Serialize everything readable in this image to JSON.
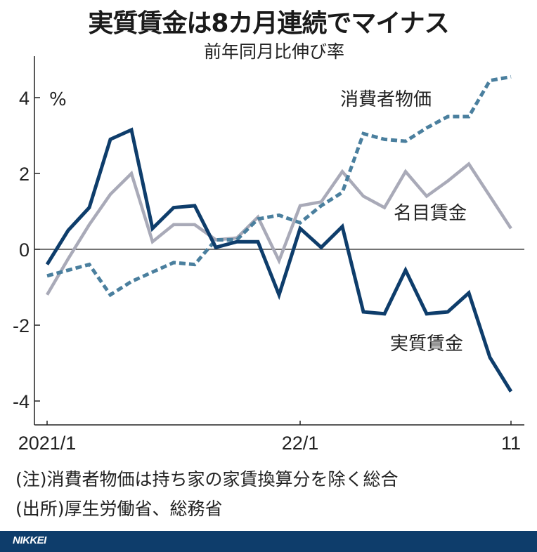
{
  "title": "実質賃金は8カ月連続でマイナス",
  "subtitle": "前年同月比伸び率",
  "unit": "%",
  "notes": [
    "(注)消費者物価は持ち家の家賃換算分を除く総合",
    "(出所)厚生労働省、総務省"
  ],
  "footer": {
    "brand": "NIKKEI"
  },
  "colors": {
    "real_wages": "#0e3d6b",
    "nominal_wages": "#a9aab8",
    "cpi": "#4a7f9e",
    "footer_bg": "#0e3d6b"
  },
  "chart_data": {
    "type": "line",
    "title": "実質賃金は8カ月連続でマイナス",
    "subtitle": "前年同月比伸び率",
    "xlabel": "",
    "ylabel": "%",
    "ylim": [
      -4.7,
      5.2
    ],
    "yticks": [
      4,
      2,
      0,
      -2,
      -4
    ],
    "xtick_labels": [
      {
        "index": 0,
        "label": "2021/1"
      },
      {
        "index": 12,
        "label": "22/1"
      },
      {
        "index": 22,
        "label": "11"
      }
    ],
    "x": [
      "2021/1",
      "2021/2",
      "2021/3",
      "2021/4",
      "2021/5",
      "2021/6",
      "2021/7",
      "2021/8",
      "2021/9",
      "2021/10",
      "2021/11",
      "2021/12",
      "2022/1",
      "2022/2",
      "2022/3",
      "2022/4",
      "2022/5",
      "2022/6",
      "2022/7",
      "2022/8",
      "2022/9",
      "2022/10",
      "2022/11"
    ],
    "grid": false,
    "legend": "inline labels",
    "series": [
      {
        "name": "実質賃金",
        "style": "solid",
        "color": "#0e3d6b",
        "values": [
          -0.4,
          0.5,
          1.1,
          2.9,
          3.15,
          0.55,
          1.1,
          1.15,
          0.05,
          0.2,
          0.2,
          -1.2,
          0.55,
          0.05,
          0.6,
          -1.65,
          -1.7,
          -0.55,
          -1.7,
          -1.65,
          -1.15,
          -2.85,
          -3.75
        ]
      },
      {
        "name": "名目賃金",
        "style": "solid",
        "color": "#a9aab8",
        "values": [
          -1.2,
          -0.25,
          0.65,
          1.45,
          2.0,
          0.2,
          0.65,
          0.65,
          0.25,
          0.3,
          0.85,
          -0.3,
          1.15,
          1.25,
          2.05,
          1.4,
          1.1,
          2.05,
          1.4,
          1.8,
          2.25,
          1.4,
          0.55
        ]
      },
      {
        "name": "消費者物価",
        "style": "dashed",
        "color": "#4a7f9e",
        "values": [
          -0.7,
          -0.55,
          -0.4,
          -1.2,
          -0.85,
          -0.6,
          -0.35,
          -0.4,
          0.25,
          0.25,
          0.8,
          0.9,
          0.7,
          1.15,
          1.5,
          3.05,
          2.9,
          2.85,
          3.2,
          3.5,
          3.5,
          4.45,
          4.55
        ]
      }
    ],
    "annotations": [
      {
        "text": "消費者物価",
        "series": "消費者物価"
      },
      {
        "text": "名目賃金",
        "series": "名目賃金"
      },
      {
        "text": "実質賃金",
        "series": "実質賃金"
      }
    ]
  }
}
